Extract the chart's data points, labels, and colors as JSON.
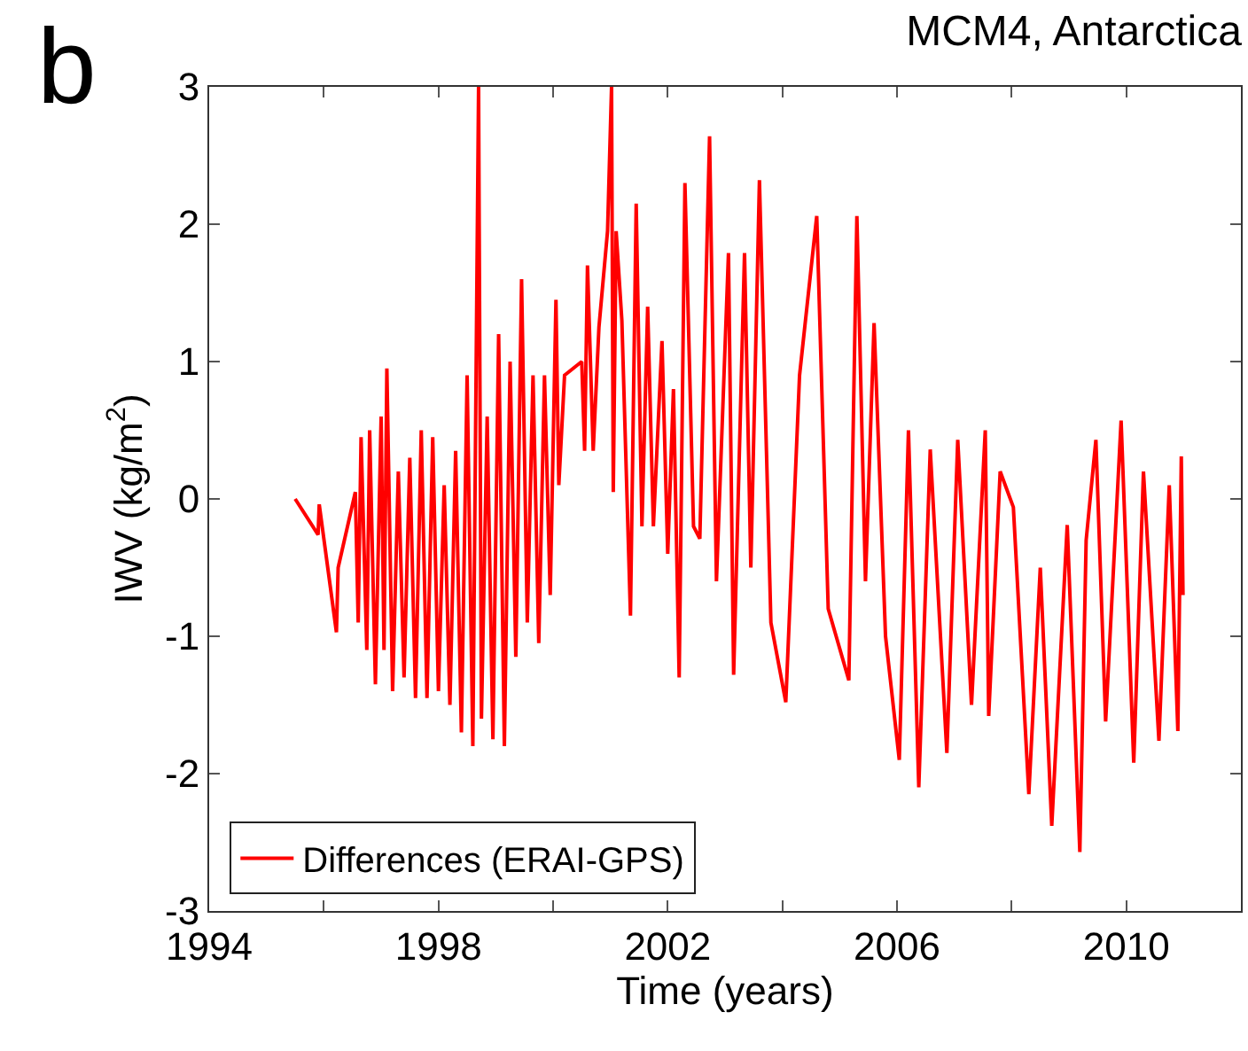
{
  "chart_data": {
    "type": "line",
    "title": "MCM4, Antarctica",
    "annotations": [
      "b"
    ],
    "xlabel": "Time (years)",
    "ylabel": "IWV (kg/m$^{2}$)",
    "xlim": [
      1994,
      2012
    ],
    "xticks": [
      1994,
      {
        "value": 1996,
        "label": null
      },
      1998,
      {
        "value": 2000,
        "label": null
      },
      2002,
      {
        "value": 2004,
        "label": null
      },
      2006,
      {
        "value": 2008,
        "label": null
      },
      2010,
      {
        "value": 2012,
        "label": null
      }
    ],
    "ylim": [
      -3,
      3
    ],
    "yticks": [
      -3,
      -2,
      -1,
      0,
      1,
      2,
      3
    ],
    "legend": "bottom left",
    "marker": "none",
    "line_style": "solid",
    "series": [
      {
        "name": "Differences (ERAI-GPS)",
        "color": "#ff0000",
        "x": [
          1995.5,
          1995.9,
          1995.92,
          1996.22,
          1996.25,
          1996.55,
          1996.6,
          1996.65,
          1996.75,
          1996.8,
          1996.9,
          1997.0,
          1997.05,
          1997.1,
          1997.2,
          1997.3,
          1997.4,
          1997.5,
          1997.6,
          1997.7,
          1997.8,
          1997.9,
          1998.0,
          1998.1,
          1998.2,
          1998.3,
          1998.4,
          1998.5,
          1998.6,
          1998.7,
          1998.75,
          1998.85,
          1998.95,
          1999.05,
          1999.15,
          1999.25,
          1999.35,
          1999.45,
          1999.55,
          1999.65,
          1999.75,
          1999.85,
          1999.95,
          2000.05,
          2000.1,
          2000.2,
          2000.5,
          2000.55,
          2000.6,
          2000.7,
          2000.8,
          2000.95,
          2001.02,
          2001.05,
          2001.1,
          2001.2,
          2001.35,
          2001.45,
          2001.55,
          2001.65,
          2001.75,
          2001.9,
          2002.0,
          2002.1,
          2002.2,
          2002.3,
          2002.45,
          2002.56,
          2002.73,
          2002.85,
          2003.06,
          2003.15,
          2003.34,
          2003.45,
          2003.6,
          2003.8,
          2004.06,
          2004.3,
          2004.6,
          2004.8,
          2005.16,
          2005.3,
          2005.45,
          2005.6,
          2005.8,
          2006.04,
          2006.2,
          2006.38,
          2006.58,
          2006.87,
          2007.06,
          2007.3,
          2007.54,
          2007.6,
          2007.8,
          2008.03,
          2008.3,
          2008.5,
          2008.7,
          2008.97,
          2009.19,
          2009.3,
          2009.47,
          2009.64,
          2009.91,
          2010.13,
          2010.3,
          2010.57,
          2010.75,
          2010.9,
          2010.96,
          2010.99
        ],
        "values": [
          0.0,
          -0.26,
          -0.04,
          -0.97,
          -0.5,
          0.05,
          -0.9,
          0.45,
          -1.1,
          0.5,
          -1.35,
          0.6,
          -1.1,
          0.95,
          -1.4,
          0.2,
          -1.3,
          0.3,
          -1.45,
          0.5,
          -1.45,
          0.45,
          -1.4,
          0.1,
          -1.5,
          0.35,
          -1.7,
          0.9,
          -1.8,
          3.0,
          -1.6,
          0.6,
          -1.75,
          1.2,
          -1.8,
          1.0,
          -1.15,
          1.6,
          -0.9,
          0.9,
          -1.05,
          0.9,
          -0.7,
          1.45,
          0.1,
          0.9,
          1.0,
          0.35,
          1.7,
          0.35,
          1.25,
          1.95,
          3.0,
          0.05,
          1.95,
          1.3,
          -0.85,
          2.15,
          -0.2,
          1.4,
          -0.2,
          1.15,
          -0.4,
          0.8,
          -1.3,
          2.3,
          -0.2,
          -0.29,
          2.64,
          -0.6,
          1.79,
          -1.28,
          1.79,
          -0.5,
          2.32,
          -0.9,
          -1.48,
          0.9,
          2.06,
          -0.8,
          -1.32,
          2.06,
          -0.6,
          1.28,
          -1.0,
          -1.9,
          0.5,
          -2.1,
          0.36,
          -1.85,
          0.43,
          -1.5,
          0.5,
          -1.58,
          0.2,
          -0.06,
          -2.15,
          -0.5,
          -2.38,
          -0.19,
          -2.57,
          -0.3,
          0.43,
          -1.62,
          0.57,
          -1.92,
          0.2,
          -1.76,
          0.1,
          -1.69,
          0.31,
          -0.7
        ]
      }
    ]
  }
}
